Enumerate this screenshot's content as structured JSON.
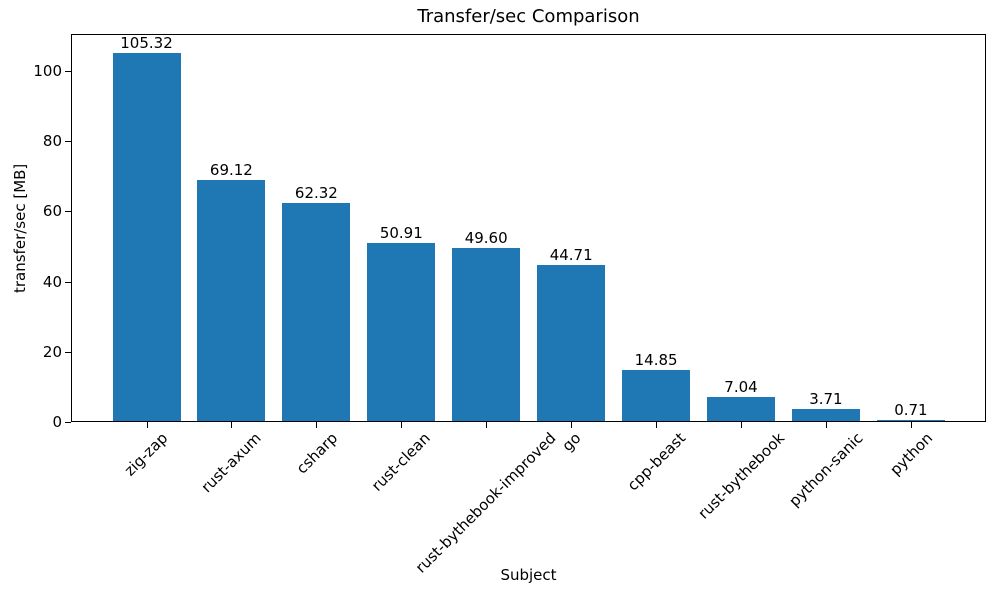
{
  "chart_data": {
    "type": "bar",
    "title": "Transfer/sec Comparison",
    "xlabel": "Subject",
    "ylabel": "transfer/sec [MB]",
    "categories": [
      "zig-zap",
      "rust-axum",
      "csharp",
      "rust-clean",
      "rust-bythebook-improved",
      "go",
      "cpp-beast",
      "rust-bythebook",
      "python-sanic",
      "python"
    ],
    "values": [
      105.32,
      69.12,
      62.32,
      50.91,
      49.6,
      44.71,
      14.85,
      7.04,
      3.71,
      0.71
    ],
    "value_labels": [
      "105.32",
      "69.12",
      "62.32",
      "50.91",
      "49.60",
      "44.71",
      "14.85",
      "7.04",
      "3.71",
      "0.71"
    ],
    "yticks": [
      "0",
      "20",
      "40",
      "60",
      "80",
      "100"
    ],
    "ylim": [
      0,
      110.59
    ],
    "bar_color": "#1f77b4",
    "text_color": "#000000",
    "spine_color": "#000000",
    "grid": false,
    "legend": null
  }
}
